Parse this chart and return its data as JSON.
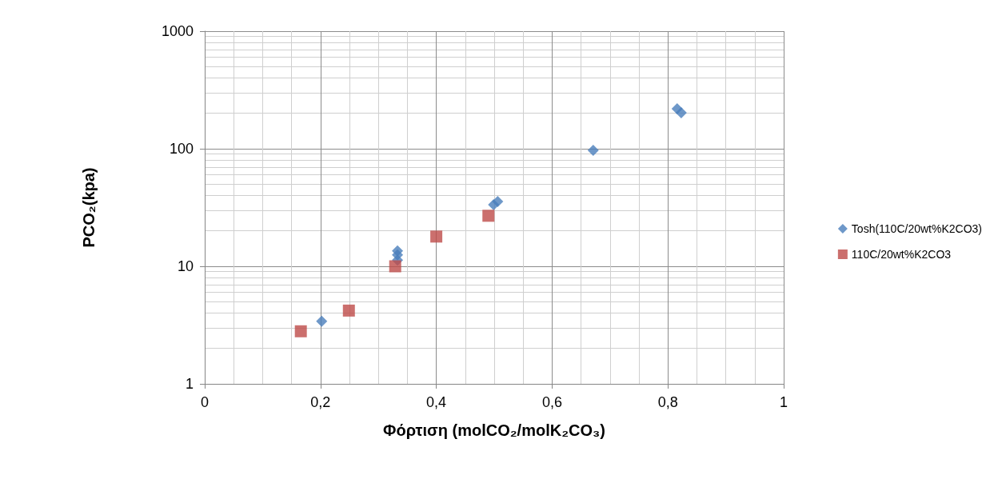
{
  "chart_data": {
    "type": "scatter",
    "xlabel": "Φόρτιση (molCO₂/molK₂CO₃)",
    "ylabel": "PCO₂(kpa)",
    "xlim": [
      0,
      1
    ],
    "xticks": [
      0,
      {
        "value": 0.2,
        "label": "0,2"
      },
      {
        "value": 0.4,
        "label": "0,4"
      },
      {
        "value": 0.6,
        "label": "0,6"
      },
      {
        "value": 0.8,
        "label": "0,8"
      },
      1
    ],
    "ylim": [
      1,
      1000
    ],
    "yticks": [
      1,
      10,
      100,
      1000
    ],
    "log": "y",
    "grid": true,
    "legend": "right",
    "series": [
      {
        "name": "Tosh(110C/20wt%K2CO3)",
        "color": "#4a7ebb",
        "marker": "diamond",
        "x": [
          0.202,
          0.333,
          0.333,
          0.333,
          0.499,
          0.506,
          0.671,
          0.816,
          0.823
        ],
        "values": [
          3.4,
          13.5,
          12.5,
          11.3,
          33.4,
          35.6,
          97,
          219,
          202
        ]
      },
      {
        "name": "110C/20wt%K2CO3",
        "color": "#be4b48",
        "marker": "square",
        "x": [
          0.166,
          0.249,
          0.329,
          0.4,
          0.49
        ],
        "values": [
          2.8,
          4.2,
          10,
          17.9,
          26.9
        ]
      }
    ]
  }
}
